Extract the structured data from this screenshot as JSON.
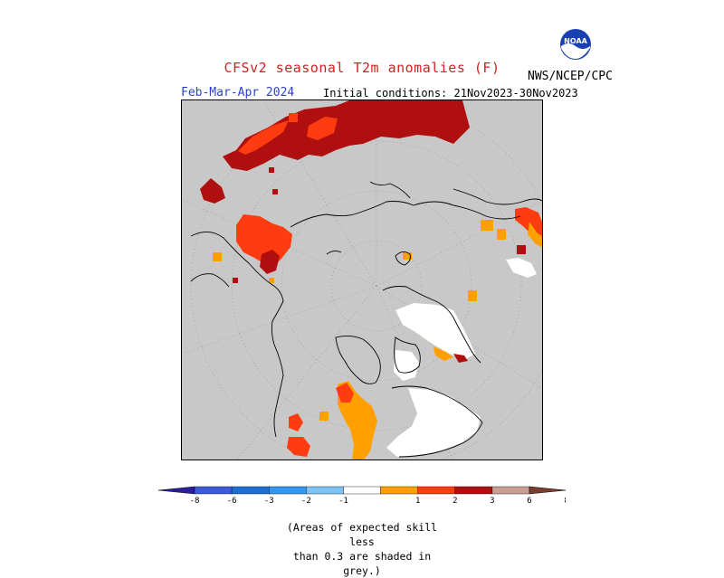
{
  "header": {
    "title": "CFSv2 seasonal T2m anomalies (F)",
    "org": "NWS/NCEP/CPC",
    "logo_text": "NOAA",
    "season": "Feb-Mar-Apr 2024",
    "initial_conditions": "Initial conditions: 21Nov2023-30Nov2023"
  },
  "colors": {
    "title": "#d42020",
    "season": "#2a3fd0",
    "background_grey": "#c8c8c8",
    "bins": [
      "#2b1e9c",
      "#3d5ad8",
      "#1e6fd4",
      "#3399f0",
      "#7fc2f6",
      "#ffffff",
      "#ffa000",
      "#ff3c10",
      "#b00f0f",
      "#c89f94",
      "#7a3e30"
    ]
  },
  "colorbar": {
    "ticks": [
      "-8",
      "-6",
      "-3",
      "-2",
      "-1",
      "1",
      "2",
      "3",
      "6",
      "8"
    ]
  },
  "footer": {
    "skill_note_line1": "(Areas of expected skill less",
    "skill_note_line2": "than 0.3 are shaded in grey.)"
  }
}
